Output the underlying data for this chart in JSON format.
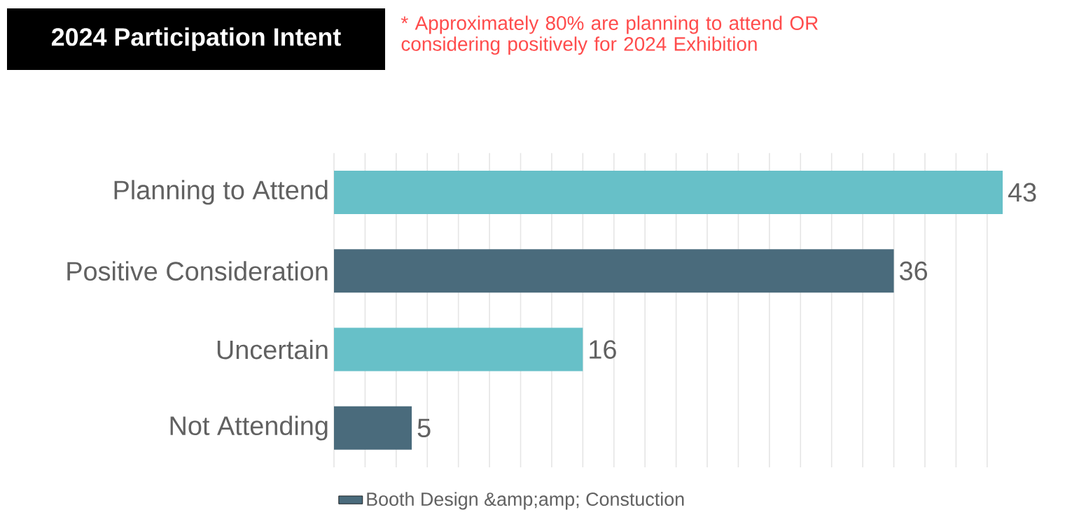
{
  "chart_data": {
    "type": "bar",
    "orientation": "horizontal",
    "title": "2024 Participation Intent",
    "annotations": [
      "* Approximately 80% are planning to attend OR considering positively for 2024 Exhibition"
    ],
    "categories": [
      "Planning to Attend",
      "Positive Consideration",
      "Uncertain",
      "Not Attending"
    ],
    "series": [
      {
        "name": "Booth Design &amp;amp; Constuction",
        "color": "#4a6b7c",
        "colors": [
          "#67c0c8",
          "#4a6b7c",
          "#67c0c8",
          "#4a6b7c"
        ],
        "values": [
          43,
          36,
          16,
          5
        ]
      }
    ],
    "xlim": [
      0,
      43
    ],
    "grid": "x",
    "data_labels": true,
    "legend": "bottom",
    "tick_labels": "y"
  }
}
